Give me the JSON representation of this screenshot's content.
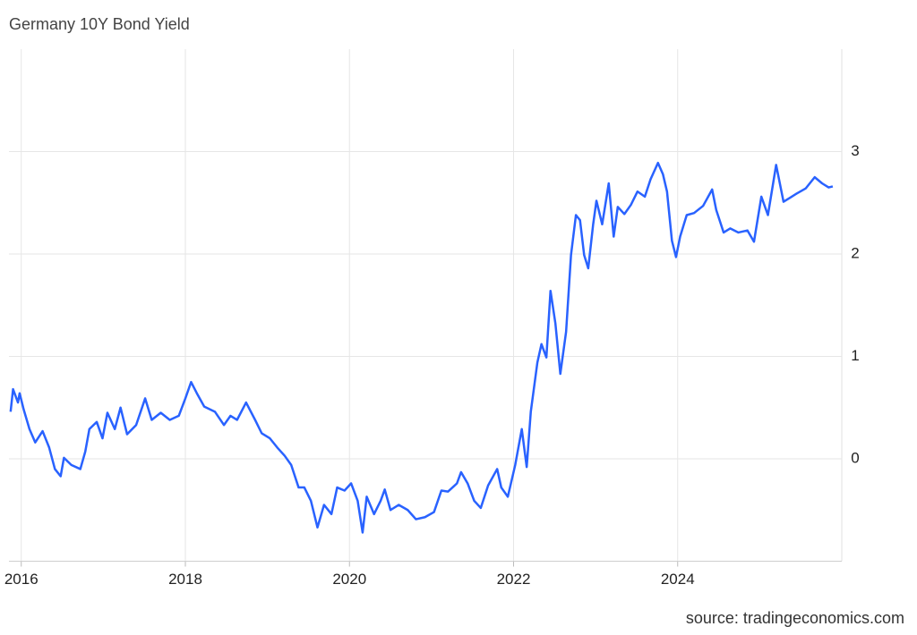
{
  "chart_data": {
    "type": "line",
    "title": "Germany 10Y Bond Yield",
    "source": "source: tradingeconomics.com",
    "xlim": [
      2015.85,
      2026.0
    ],
    "xticks": [
      2016,
      2018,
      2020,
      2022,
      2024
    ],
    "ylim": [
      -1,
      4
    ],
    "yticks": [
      0,
      1,
      2,
      3
    ],
    "grid": true,
    "series": [
      {
        "name": "Germany 10Y Bond Yield",
        "color": "#2962ff",
        "x": [
          2015.87,
          2015.9,
          2015.96,
          2015.98,
          2016.03,
          2016.1,
          2016.17,
          2016.26,
          2016.34,
          2016.41,
          2016.48,
          2016.52,
          2016.61,
          2016.72,
          2016.78,
          2016.83,
          2016.92,
          2016.99,
          2017.05,
          2017.14,
          2017.21,
          2017.29,
          2017.4,
          2017.51,
          2017.59,
          2017.7,
          2017.81,
          2017.92,
          2018.0,
          2018.07,
          2018.14,
          2018.23,
          2018.36,
          2018.47,
          2018.55,
          2018.63,
          2018.74,
          2018.85,
          2018.93,
          2019.03,
          2019.12,
          2019.21,
          2019.29,
          2019.38,
          2019.45,
          2019.53,
          2019.61,
          2019.69,
          2019.78,
          2019.85,
          2019.94,
          2020.02,
          2020.1,
          2020.16,
          2020.21,
          2020.3,
          2020.38,
          2020.43,
          2020.5,
          2020.6,
          2020.71,
          2020.81,
          2020.92,
          2021.03,
          2021.12,
          2021.2,
          2021.31,
          2021.36,
          2021.44,
          2021.52,
          2021.6,
          2021.69,
          2021.8,
          2021.85,
          2021.93,
          2022.02,
          2022.1,
          2022.16,
          2022.21,
          2022.29,
          2022.34,
          2022.4,
          2022.45,
          2022.51,
          2022.57,
          2022.64,
          2022.7,
          2022.76,
          2022.81,
          2022.86,
          2022.91,
          2022.97,
          2023.01,
          2023.08,
          2023.16,
          2023.22,
          2023.27,
          2023.35,
          2023.43,
          2023.51,
          2023.6,
          2023.67,
          2023.76,
          2023.82,
          2023.87,
          2023.93,
          2023.98,
          2024.03,
          2024.11,
          2024.2,
          2024.31,
          2024.42,
          2024.47,
          2024.56,
          2024.64,
          2024.74,
          2024.85,
          2024.93,
          2025.02,
          2025.1,
          2025.2,
          2025.29,
          2025.37,
          2025.45,
          2025.56,
          2025.67,
          2025.76,
          2025.84,
          2025.89
        ],
        "values": [
          0.46,
          0.68,
          0.55,
          0.64,
          0.48,
          0.29,
          0.16,
          0.27,
          0.11,
          -0.1,
          -0.17,
          0.01,
          -0.06,
          -0.1,
          0.07,
          0.29,
          0.36,
          0.2,
          0.45,
          0.29,
          0.5,
          0.24,
          0.33,
          0.59,
          0.38,
          0.45,
          0.38,
          0.42,
          0.59,
          0.75,
          0.64,
          0.51,
          0.46,
          0.33,
          0.42,
          0.38,
          0.55,
          0.38,
          0.25,
          0.2,
          0.11,
          0.03,
          -0.06,
          -0.28,
          -0.28,
          -0.41,
          -0.67,
          -0.45,
          -0.54,
          -0.28,
          -0.31,
          -0.24,
          -0.41,
          -0.72,
          -0.37,
          -0.54,
          -0.41,
          -0.3,
          -0.5,
          -0.45,
          -0.5,
          -0.59,
          -0.57,
          -0.52,
          -0.31,
          -0.32,
          -0.24,
          -0.13,
          -0.24,
          -0.41,
          -0.48,
          -0.26,
          -0.1,
          -0.28,
          -0.37,
          -0.06,
          0.29,
          -0.08,
          0.46,
          0.94,
          1.12,
          0.99,
          1.64,
          1.32,
          0.83,
          1.24,
          1.99,
          2.38,
          2.33,
          1.99,
          1.86,
          2.29,
          2.52,
          2.29,
          2.69,
          2.17,
          2.46,
          2.39,
          2.48,
          2.61,
          2.56,
          2.73,
          2.89,
          2.78,
          2.61,
          2.13,
          1.97,
          2.17,
          2.38,
          2.4,
          2.47,
          2.63,
          2.43,
          2.21,
          2.25,
          2.21,
          2.23,
          2.12,
          2.56,
          2.38,
          2.87,
          2.51,
          2.55,
          2.59,
          2.64,
          2.75,
          2.69,
          2.65,
          2.66
        ]
      }
    ]
  }
}
